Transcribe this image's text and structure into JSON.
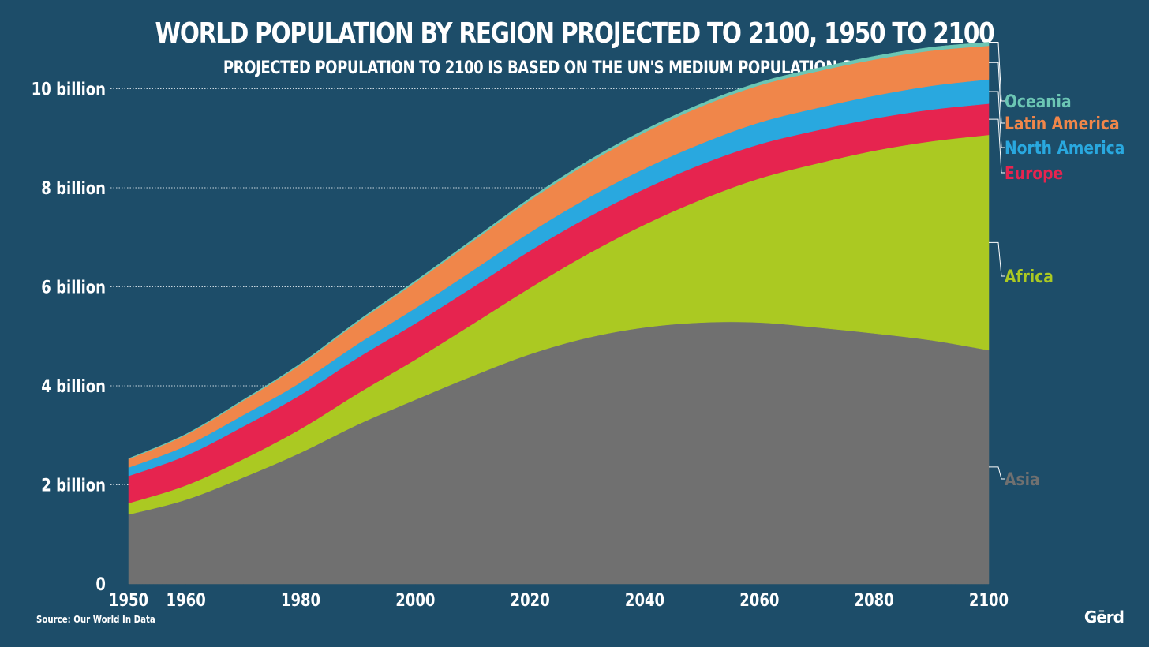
{
  "header": {
    "title": "WORLD POPULATION BY REGION PROJECTED TO 2100, 1950 TO 2100",
    "subtitle": "PROJECTED POPULATION TO 2100 IS BASED ON THE UN'S MEDIUM POPULATION SCENARIO."
  },
  "footer": {
    "source": "Source: Our World In Data",
    "logo": "Gērd"
  },
  "chart_data": {
    "type": "area",
    "stacked": true,
    "title": "WORLD POPULATION BY REGION PROJECTED TO 2100, 1950 TO 2100",
    "subtitle": "PROJECTED POPULATION TO 2100 IS BASED ON THE UN'S MEDIUM POPULATION SCENARIO.",
    "xlabel": "",
    "ylabel": "",
    "x": [
      1950,
      1960,
      1970,
      1980,
      1990,
      2000,
      2010,
      2020,
      2030,
      2040,
      2050,
      2060,
      2070,
      2080,
      2090,
      2100
    ],
    "xlim": [
      1950,
      2100
    ],
    "ylim": [
      0,
      10.2
    ],
    "x_ticks": [
      1950,
      1960,
      1980,
      2000,
      2020,
      2040,
      2060,
      2080,
      2100
    ],
    "y_ticks": [
      {
        "value": 0,
        "label": "0"
      },
      {
        "value": 2,
        "label": "2 billion"
      },
      {
        "value": 4,
        "label": "4 billion"
      },
      {
        "value": 6,
        "label": "6 billion"
      },
      {
        "value": 8,
        "label": "8 billion"
      },
      {
        "value": 10,
        "label": "10 billion"
      }
    ],
    "grid": "horizontal dotted",
    "legend": "right, inline labels",
    "unit": "billion",
    "series": [
      {
        "name": "Asia",
        "color": "#707070",
        "values": [
          1.4,
          1.7,
          2.15,
          2.65,
          3.22,
          3.72,
          4.2,
          4.64,
          4.97,
          5.18,
          5.28,
          5.28,
          5.18,
          5.06,
          4.92,
          4.72
        ]
      },
      {
        "name": "Africa",
        "color": "#abc922",
        "values": [
          0.23,
          0.29,
          0.37,
          0.48,
          0.63,
          0.81,
          1.05,
          1.34,
          1.69,
          2.08,
          2.49,
          2.91,
          3.31,
          3.69,
          4.02,
          4.35
        ]
      },
      {
        "name": "Europe",
        "color": "#e6244f",
        "values": [
          0.55,
          0.6,
          0.66,
          0.69,
          0.72,
          0.73,
          0.74,
          0.75,
          0.74,
          0.72,
          0.71,
          0.69,
          0.67,
          0.65,
          0.64,
          0.63
        ]
      },
      {
        "name": "North America",
        "color": "#29a8df",
        "values": [
          0.17,
          0.2,
          0.23,
          0.25,
          0.28,
          0.31,
          0.34,
          0.37,
          0.39,
          0.41,
          0.42,
          0.44,
          0.45,
          0.46,
          0.48,
          0.49
        ]
      },
      {
        "name": "Latin America",
        "color": "#f0864a",
        "values": [
          0.17,
          0.22,
          0.29,
          0.36,
          0.44,
          0.52,
          0.59,
          0.65,
          0.7,
          0.73,
          0.75,
          0.75,
          0.74,
          0.73,
          0.71,
          0.68
        ]
      },
      {
        "name": "Oceania",
        "color": "#6cc6b4",
        "values": [
          0.013,
          0.016,
          0.02,
          0.023,
          0.027,
          0.031,
          0.037,
          0.043,
          0.048,
          0.053,
          0.057,
          0.061,
          0.064,
          0.067,
          0.07,
          0.072
        ]
      }
    ]
  }
}
